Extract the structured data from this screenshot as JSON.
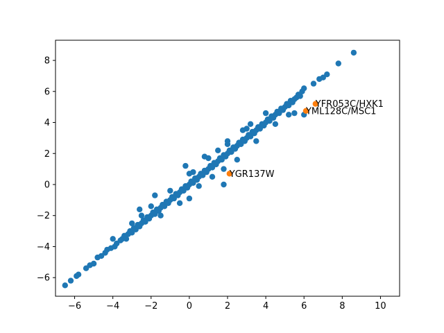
{
  "chart_data": {
    "type": "scatter",
    "title": "",
    "xlabel": "",
    "ylabel": "",
    "xlim": [
      -7,
      11
    ],
    "ylim": [
      -7.2,
      9.3
    ],
    "xticks": [
      -6,
      -4,
      -2,
      0,
      2,
      4,
      6,
      8,
      10
    ],
    "xtick_labels": [
      "−6",
      "−4",
      "−2",
      "0",
      "2",
      "4",
      "6",
      "8",
      "10"
    ],
    "yticks": [
      -6,
      -4,
      -2,
      0,
      2,
      4,
      6,
      8
    ],
    "ytick_labels": [
      "−6",
      "−4",
      "−2",
      "0",
      "2",
      "4",
      "6",
      "8"
    ],
    "grid": false,
    "series": [
      {
        "color": "#1f77b4",
        "points": [
          [
            -6.5,
            -6.5
          ],
          [
            -6.2,
            -6.2
          ],
          [
            -5.9,
            -5.9
          ],
          [
            -5.8,
            -5.8
          ],
          [
            -5.4,
            -5.4
          ],
          [
            -5.2,
            -5.2
          ],
          [
            -5.0,
            -5.1
          ],
          [
            -4.8,
            -4.7
          ],
          [
            -4.6,
            -4.6
          ],
          [
            -4.4,
            -4.4
          ],
          [
            -4.3,
            -4.2
          ],
          [
            -4.1,
            -4.1
          ],
          [
            -3.9,
            -4.0
          ],
          [
            -3.8,
            -3.8
          ],
          [
            -3.6,
            -3.6
          ],
          [
            -3.5,
            -3.5
          ],
          [
            -3.4,
            -3.3
          ],
          [
            -3.3,
            -3.5
          ],
          [
            -3.2,
            -3.2
          ],
          [
            -3.1,
            -3.0
          ],
          [
            -3.0,
            -3.1
          ],
          [
            -2.9,
            -2.8
          ],
          [
            -2.8,
            -2.9
          ],
          [
            -2.7,
            -2.6
          ],
          [
            -2.6,
            -2.7
          ],
          [
            -2.5,
            -2.5
          ],
          [
            -2.4,
            -2.3
          ],
          [
            -2.3,
            -2.4
          ],
          [
            -2.2,
            -2.1
          ],
          [
            -2.1,
            -2.2
          ],
          [
            -2.0,
            -2.0
          ],
          [
            -1.9,
            -1.8
          ],
          [
            -1.8,
            -1.9
          ],
          [
            -1.7,
            -1.6
          ],
          [
            -1.6,
            -1.7
          ],
          [
            -1.5,
            -1.5
          ],
          [
            -1.4,
            -1.3
          ],
          [
            -1.3,
            -1.4
          ],
          [
            -1.2,
            -1.1
          ],
          [
            -1.1,
            -1.2
          ],
          [
            -1.0,
            -1.0
          ],
          [
            -0.9,
            -0.8
          ],
          [
            -0.8,
            -0.9
          ],
          [
            -0.7,
            -0.6
          ],
          [
            -0.6,
            -0.7
          ],
          [
            -0.5,
            -0.5
          ],
          [
            -0.4,
            -0.3
          ],
          [
            -0.3,
            -0.4
          ],
          [
            -0.2,
            -0.1
          ],
          [
            -0.1,
            -0.2
          ],
          [
            0.0,
            0.0
          ],
          [
            0.1,
            0.2
          ],
          [
            0.2,
            0.1
          ],
          [
            0.3,
            0.4
          ],
          [
            0.4,
            0.3
          ],
          [
            0.5,
            0.5
          ],
          [
            0.6,
            0.7
          ],
          [
            0.7,
            0.6
          ],
          [
            0.8,
            0.9
          ],
          [
            0.9,
            0.8
          ],
          [
            1.0,
            1.0
          ],
          [
            1.1,
            1.2
          ],
          [
            1.2,
            1.1
          ],
          [
            1.3,
            1.4
          ],
          [
            1.4,
            1.3
          ],
          [
            1.5,
            1.5
          ],
          [
            1.6,
            1.7
          ],
          [
            1.7,
            1.6
          ],
          [
            1.8,
            1.9
          ],
          [
            1.9,
            1.8
          ],
          [
            2.0,
            2.0
          ],
          [
            2.1,
            2.2
          ],
          [
            2.2,
            2.1
          ],
          [
            2.3,
            2.4
          ],
          [
            2.4,
            2.3
          ],
          [
            2.5,
            2.5
          ],
          [
            2.6,
            2.7
          ],
          [
            2.7,
            2.6
          ],
          [
            2.8,
            2.9
          ],
          [
            2.9,
            2.8
          ],
          [
            3.0,
            3.0
          ],
          [
            3.1,
            3.2
          ],
          [
            3.2,
            3.1
          ],
          [
            3.3,
            3.4
          ],
          [
            3.4,
            3.3
          ],
          [
            3.5,
            3.5
          ],
          [
            3.6,
            3.7
          ],
          [
            3.7,
            3.6
          ],
          [
            3.8,
            3.9
          ],
          [
            3.9,
            3.8
          ],
          [
            4.0,
            4.0
          ],
          [
            4.1,
            4.2
          ],
          [
            4.2,
            4.1
          ],
          [
            4.3,
            4.4
          ],
          [
            4.4,
            4.3
          ],
          [
            4.5,
            4.5
          ],
          [
            4.6,
            4.7
          ],
          [
            4.7,
            4.6
          ],
          [
            4.8,
            4.9
          ],
          [
            4.9,
            4.8
          ],
          [
            5.0,
            5.0
          ],
          [
            5.1,
            5.2
          ],
          [
            5.2,
            5.1
          ],
          [
            5.3,
            5.4
          ],
          [
            5.4,
            5.3
          ],
          [
            5.5,
            5.5
          ],
          [
            5.6,
            5.6
          ],
          [
            5.7,
            5.8
          ],
          [
            5.8,
            5.7
          ],
          [
            5.9,
            6.0
          ],
          [
            6.0,
            6.2
          ],
          [
            6.5,
            6.5
          ],
          [
            6.8,
            6.8
          ],
          [
            7.0,
            6.9
          ],
          [
            7.2,
            7.1
          ],
          [
            7.8,
            7.8
          ],
          [
            8.6,
            8.5
          ],
          [
            -2.5,
            -2.0
          ],
          [
            -1.5,
            -2.0
          ],
          [
            -0.5,
            -1.2
          ],
          [
            0.5,
            -0.1
          ],
          [
            1.2,
            0.5
          ],
          [
            1.8,
            1.0
          ],
          [
            2.5,
            1.6
          ],
          [
            3.5,
            2.8
          ],
          [
            4.5,
            3.9
          ],
          [
            5.2,
            4.5
          ],
          [
            5.5,
            4.6
          ],
          [
            6.0,
            4.5
          ],
          [
            -3.0,
            -2.5
          ],
          [
            -1.0,
            -0.4
          ],
          [
            0.2,
            0.8
          ],
          [
            1.0,
            1.7
          ],
          [
            2.0,
            2.6
          ],
          [
            3.0,
            3.6
          ],
          [
            4.0,
            4.6
          ],
          [
            -4.0,
            -3.5
          ],
          [
            -2.0,
            -1.4
          ],
          [
            0.0,
            0.7
          ],
          [
            1.5,
            2.2
          ],
          [
            2.8,
            3.5
          ],
          [
            -0.2,
            1.2
          ],
          [
            0.8,
            1.8
          ],
          [
            -1.8,
            -0.7
          ],
          [
            0.0,
            -0.9
          ],
          [
            1.8,
            0.0
          ],
          [
            2.0,
            2.8
          ],
          [
            -2.6,
            -1.6
          ],
          [
            3.2,
            3.9
          ]
        ]
      },
      {
        "color": "#ff7f0e",
        "points": [
          [
            2.1,
            0.7
          ],
          [
            6.6,
            5.2
          ],
          [
            6.1,
            4.75
          ]
        ]
      }
    ],
    "annotations": [
      {
        "text": "YGR137W",
        "x": 2.1,
        "y": 0.7
      },
      {
        "text": "YFR053C/HXK1",
        "x": 6.6,
        "y": 5.2
      },
      {
        "text": "YML128C/MSC1",
        "x": 6.1,
        "y": 4.75
      }
    ]
  }
}
